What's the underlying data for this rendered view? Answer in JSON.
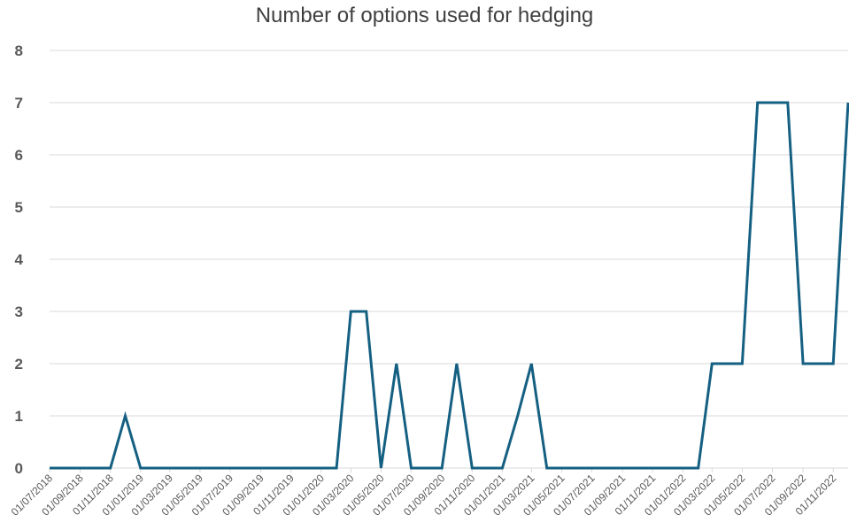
{
  "chart_data": {
    "type": "line",
    "title": "Number of options used for hedging",
    "xlabel": "",
    "ylabel": "",
    "ylim": [
      0,
      8
    ],
    "yticks": [
      "0",
      "1",
      "2",
      "3",
      "4",
      "5",
      "6",
      "7",
      "8"
    ],
    "grid": true,
    "legend": "none",
    "line_color": "#156082",
    "xtick_labels": [
      "01/07/2018",
      "01/09/2018",
      "01/11/2018",
      "01/01/2019",
      "01/03/2019",
      "01/05/2019",
      "01/07/2019",
      "01/09/2019",
      "01/11/2019",
      "01/01/2020",
      "01/03/2020",
      "01/05/2020",
      "01/07/2020",
      "01/09/2020",
      "01/11/2020",
      "01/01/2021",
      "01/03/2021",
      "01/05/2021",
      "01/07/2021",
      "01/09/2021",
      "01/11/2021",
      "01/01/2022",
      "01/03/2022",
      "01/05/2022",
      "01/07/2022",
      "01/09/2022",
      "01/11/2022"
    ],
    "series": [
      {
        "x": [
          "01/07/2018",
          "01/08/2018",
          "01/09/2018",
          "01/10/2018",
          "01/11/2018",
          "01/12/2018",
          "01/01/2019",
          "01/02/2019",
          "01/03/2019",
          "01/04/2019",
          "01/05/2019",
          "01/06/2019",
          "01/07/2019",
          "01/08/2019",
          "01/09/2019",
          "01/10/2019",
          "01/11/2019",
          "01/12/2019",
          "01/01/2020",
          "01/02/2020",
          "01/03/2020",
          "01/04/2020",
          "01/05/2020",
          "01/06/2020",
          "01/07/2020",
          "01/08/2020",
          "01/09/2020",
          "01/10/2020",
          "01/11/2020",
          "01/12/2020",
          "01/01/2021",
          "01/02/2021",
          "01/03/2021",
          "01/04/2021",
          "01/05/2021",
          "01/06/2021",
          "01/07/2021",
          "01/08/2021",
          "01/09/2021",
          "01/10/2021",
          "01/11/2021",
          "01/12/2021",
          "01/01/2022",
          "01/02/2022",
          "01/03/2022",
          "01/04/2022",
          "01/05/2022",
          "01/06/2022",
          "01/07/2022",
          "01/08/2022",
          "01/09/2022",
          "01/10/2022",
          "01/11/2022",
          "01/12/2022"
        ],
        "values": [
          0,
          0,
          0,
          0,
          0,
          1,
          0,
          0,
          0,
          0,
          0,
          0,
          0,
          0,
          0,
          0,
          0,
          0,
          0,
          0,
          3,
          3,
          0,
          2,
          0,
          0,
          0,
          2,
          0,
          0,
          0,
          1,
          2,
          0,
          0,
          0,
          0,
          0,
          0,
          0,
          0,
          0,
          0,
          0,
          2,
          2,
          2,
          7,
          7,
          7,
          2,
          2,
          2,
          7
        ]
      }
    ]
  }
}
